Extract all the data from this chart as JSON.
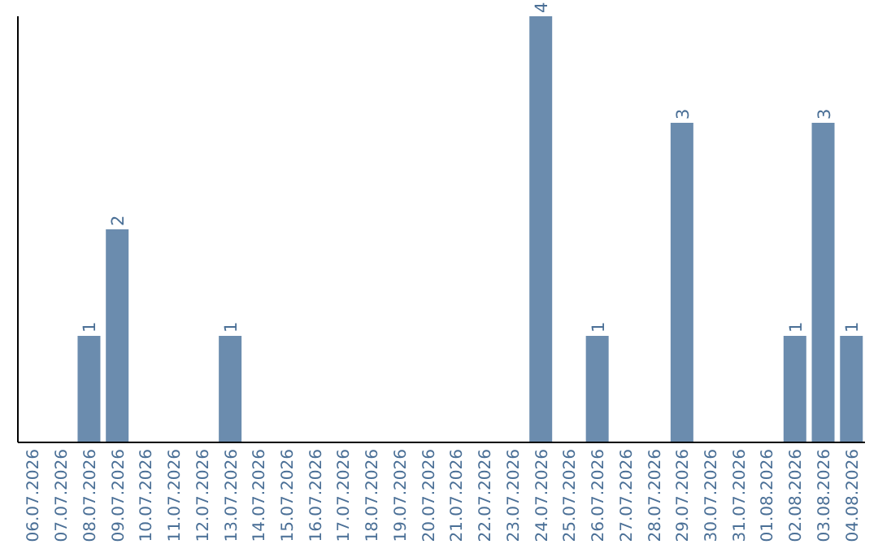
{
  "chart_data": {
    "type": "bar",
    "categories": [
      "06.07.2026",
      "07.07.2026",
      "08.07.2026",
      "09.07.2026",
      "10.07.2026",
      "11.07.2026",
      "12.07.2026",
      "13.07.2026",
      "14.07.2026",
      "15.07.2026",
      "16.07.2026",
      "17.07.2026",
      "18.07.2026",
      "19.07.2026",
      "20.07.2026",
      "21.07.2026",
      "22.07.2026",
      "23.07.2026",
      "24.07.2026",
      "25.07.2026",
      "26.07.2026",
      "27.07.2026",
      "28.07.2026",
      "29.07.2026",
      "30.07.2026",
      "31.07.2026",
      "01.08.2026",
      "02.08.2026",
      "03.08.2026",
      "04.08.2026"
    ],
    "values": [
      0,
      0,
      1,
      2,
      0,
      0,
      0,
      1,
      0,
      0,
      0,
      0,
      0,
      0,
      0,
      0,
      0,
      0,
      4,
      0,
      1,
      0,
      0,
      3,
      0,
      0,
      0,
      1,
      3,
      1
    ],
    "value_labels": [
      null,
      null,
      "1",
      "2",
      null,
      null,
      null,
      "1",
      null,
      null,
      null,
      null,
      null,
      null,
      null,
      null,
      null,
      null,
      "4",
      null,
      "1",
      null,
      null,
      "3",
      null,
      null,
      null,
      "1",
      "3",
      "1"
    ],
    "color": "#6b8cae",
    "ylim": [
      0,
      4
    ],
    "tick_labels": "x",
    "grid": false,
    "legend": false
  }
}
